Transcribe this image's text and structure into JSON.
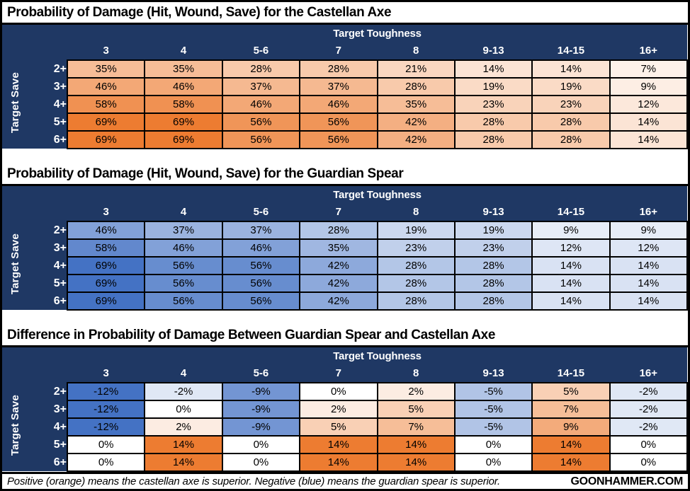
{
  "colors": {
    "navy": "#1F3864",
    "orange": "#ED7C31",
    "blue": "#4472C4",
    "grid_border": "#000000",
    "cell_text": "#000000"
  },
  "footer": {
    "note": "Positive (orange) means the castellan axe is superior. Negative (blue) means the guardian spear is superior.",
    "brand": "GOONHAMMER.COM"
  },
  "chart_data": [
    {
      "type": "heatmap",
      "title": "Probability of Damage (Hit, Wound, Save) for the Castellan Axe",
      "xlabel": "Target Toughness",
      "ylabel": "Target Save",
      "columns": [
        "3",
        "4",
        "5-6",
        "7",
        "8",
        "9-13",
        "14-15",
        "16+"
      ],
      "rows": [
        "2+",
        "3+",
        "4+",
        "5+",
        "6+"
      ],
      "unit": "%",
      "values": [
        [
          35,
          35,
          28,
          28,
          21,
          14,
          14,
          7
        ],
        [
          46,
          46,
          37,
          37,
          28,
          19,
          19,
          9
        ],
        [
          58,
          58,
          46,
          46,
          35,
          23,
          23,
          12
        ],
        [
          69,
          69,
          56,
          56,
          42,
          28,
          28,
          14
        ],
        [
          69,
          69,
          56,
          56,
          42,
          28,
          28,
          14
        ]
      ],
      "scale": {
        "mode": "sequential",
        "max": 69,
        "max_color": "#ED7C31",
        "zero_color": "#FFFFFF"
      }
    },
    {
      "type": "heatmap",
      "title": "Probability of Damage (Hit, Wound, Save) for the Guardian Spear",
      "xlabel": "Target Toughness",
      "ylabel": "Target Save",
      "columns": [
        "3",
        "4",
        "5-6",
        "7",
        "8",
        "9-13",
        "14-15",
        "16+"
      ],
      "rows": [
        "2+",
        "3+",
        "4+",
        "5+",
        "6+"
      ],
      "unit": "%",
      "values": [
        [
          46,
          37,
          37,
          28,
          19,
          19,
          9,
          9
        ],
        [
          58,
          46,
          46,
          35,
          23,
          23,
          12,
          12
        ],
        [
          69,
          56,
          56,
          42,
          28,
          28,
          14,
          14
        ],
        [
          69,
          56,
          56,
          42,
          28,
          28,
          14,
          14
        ],
        [
          69,
          56,
          56,
          42,
          28,
          28,
          14,
          14
        ]
      ],
      "scale": {
        "mode": "sequential",
        "max": 69,
        "max_color": "#4472C4",
        "zero_color": "#FFFFFF"
      }
    },
    {
      "type": "heatmap",
      "title": "Difference in Probability of Damage Between Guardian Spear and Castellan Axe",
      "xlabel": "Target Toughness",
      "ylabel": "Target Save",
      "columns": [
        "3",
        "4",
        "5-6",
        "7",
        "8",
        "9-13",
        "14-15",
        "16+"
      ],
      "rows": [
        "2+",
        "3+",
        "4+",
        "5+",
        "6+"
      ],
      "unit": "%",
      "values": [
        [
          -12,
          -2,
          -9,
          0,
          2,
          -5,
          5,
          -2
        ],
        [
          -12,
          0,
          -9,
          2,
          5,
          -5,
          7,
          -2
        ],
        [
          -12,
          2,
          -9,
          5,
          7,
          -5,
          9,
          -2
        ],
        [
          0,
          14,
          0,
          14,
          14,
          0,
          14,
          0
        ],
        [
          0,
          14,
          0,
          14,
          14,
          0,
          14,
          0
        ]
      ],
      "scale": {
        "mode": "diverging",
        "min": -12,
        "max": 14,
        "positive_color": "#ED7C31",
        "negative_color": "#4472C4",
        "zero_color": "#FFFFFF"
      }
    }
  ]
}
